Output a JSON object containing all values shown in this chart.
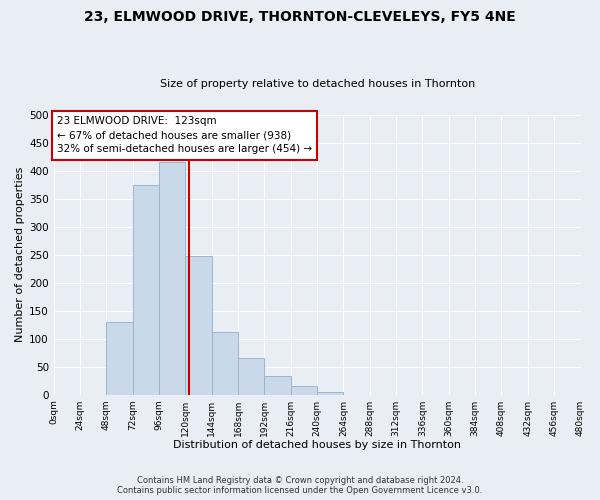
{
  "title": "23, ELMWOOD DRIVE, THORNTON-CLEVELEYS, FY5 4NE",
  "subtitle": "Size of property relative to detached houses in Thornton",
  "xlabel": "Distribution of detached houses by size in Thornton",
  "ylabel": "Number of detached properties",
  "bar_edges": [
    0,
    24,
    48,
    72,
    96,
    120,
    144,
    168,
    192,
    216,
    240,
    264,
    288,
    312,
    336,
    360,
    384,
    408,
    432,
    456,
    480
  ],
  "bar_heights": [
    0,
    0,
    130,
    375,
    415,
    247,
    112,
    65,
    33,
    16,
    5,
    0,
    0,
    0,
    0,
    0,
    0,
    0,
    0,
    0
  ],
  "bar_color": "#c9d9ea",
  "bar_edge_color": "#9ab5cc",
  "property_size": 123,
  "vline_color": "#cc0000",
  "annotation_box_edge_color": "#cc0000",
  "annotation_lines": [
    "23 ELMWOOD DRIVE:  123sqm",
    "← 67% of detached houses are smaller (938)",
    "32% of semi-detached houses are larger (454) →"
  ],
  "ylim": [
    0,
    500
  ],
  "xlim": [
    0,
    480
  ],
  "yticks": [
    0,
    50,
    100,
    150,
    200,
    250,
    300,
    350,
    400,
    450,
    500
  ],
  "xtick_labels": [
    "0sqm",
    "24sqm",
    "48sqm",
    "72sqm",
    "96sqm",
    "120sqm",
    "144sqm",
    "168sqm",
    "192sqm",
    "216sqm",
    "240sqm",
    "264sqm",
    "288sqm",
    "312sqm",
    "336sqm",
    "360sqm",
    "384sqm",
    "408sqm",
    "432sqm",
    "456sqm",
    "480sqm"
  ],
  "footer_lines": [
    "Contains HM Land Registry data © Crown copyright and database right 2024.",
    "Contains public sector information licensed under the Open Government Licence v3.0."
  ],
  "bg_color": "#e8eef4",
  "grid_color": "#ffffff"
}
